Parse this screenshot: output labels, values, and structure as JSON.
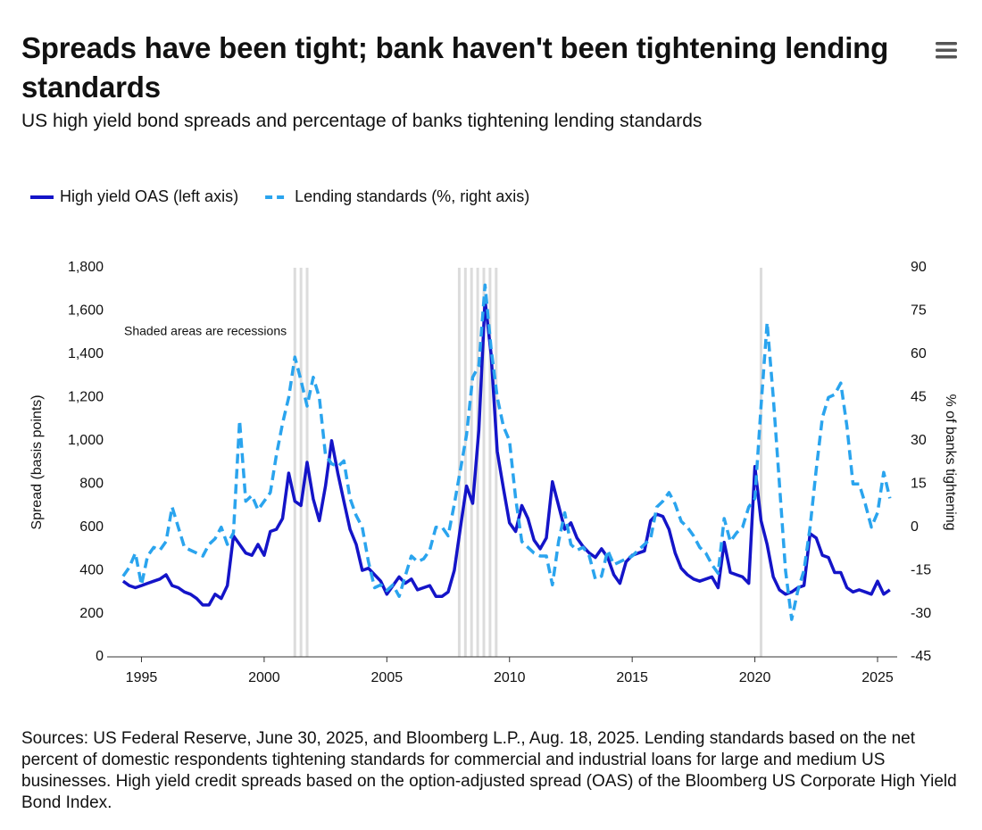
{
  "chart_data": {
    "type": "line",
    "title": "Spreads have been tight; bank haven't been tightening lending standards",
    "subtitle": "US high yield bond spreads and percentage of banks tightening lending standards",
    "ylabel": "Spread (basis points)",
    "y2label": "% of banks tightening",
    "annotation": "Shaded areas are recessions",
    "note": "Sources: US Federal Reserve, June 30, 2025, and Bloomberg L.P., Aug. 18, 2025. Lending standards based on the net percent of domestic respondents tightening standards for commercial and industrial loans for large and medium US businesses. High yield credit spreads based on the option-adjusted spread (OAS) of the Bloomberg US Corporate High Yield Bond Index.",
    "recessions": [
      [
        2001.25,
        2001.9
      ],
      [
        2007.95,
        2009.5
      ],
      [
        2020.25,
        2020.25
      ]
    ],
    "recession_color": "#dcdcdc",
    "xlim": [
      1993.6,
      2025.8
    ],
    "xticks": [
      1995,
      2000,
      2005,
      2010,
      2015,
      2020,
      2025
    ],
    "ylim": [
      0,
      1800
    ],
    "yticks": [
      0,
      200,
      400,
      600,
      800,
      {
        "value": 1000,
        "label": "1,000"
      },
      {
        "value": 1200,
        "label": "1,200"
      },
      {
        "value": 1400,
        "label": "1,400"
      },
      {
        "value": 1600,
        "label": "1,600"
      },
      {
        "value": 1800,
        "label": "1,800"
      }
    ],
    "y2lim": [
      -45,
      90
    ],
    "y2ticks": [
      -45,
      -30,
      -15,
      0,
      15,
      30,
      45,
      60,
      75,
      90
    ],
    "x": [
      1994.25,
      1994.5,
      1994.75,
      1995,
      1995.25,
      1995.5,
      1995.75,
      1996,
      1996.25,
      1996.5,
      1996.75,
      1997,
      1997.25,
      1997.5,
      1997.75,
      1998,
      1998.25,
      1998.5,
      1998.75,
      1999,
      1999.25,
      1999.5,
      1999.75,
      2000,
      2000.25,
      2000.5,
      2000.75,
      2001,
      2001.25,
      2001.5,
      2001.75,
      2002,
      2002.25,
      2002.5,
      2002.75,
      2003,
      2003.25,
      2003.5,
      2003.75,
      2004,
      2004.25,
      2004.5,
      2004.75,
      2005,
      2005.25,
      2005.5,
      2005.75,
      2006,
      2006.25,
      2006.5,
      2006.75,
      2007,
      2007.25,
      2007.5,
      2007.75,
      2008,
      2008.25,
      2008.5,
      2008.75,
      2009,
      2009.25,
      2009.5,
      2009.75,
      2010,
      2010.25,
      2010.5,
      2010.75,
      2011,
      2011.25,
      2011.5,
      2011.75,
      2012,
      2012.25,
      2012.5,
      2012.75,
      2013,
      2013.25,
      2013.5,
      2013.75,
      2014,
      2014.25,
      2014.5,
      2014.75,
      2015,
      2015.25,
      2015.5,
      2015.75,
      2016,
      2016.25,
      2016.5,
      2016.75,
      2017,
      2017.25,
      2017.5,
      2017.75,
      2018,
      2018.25,
      2018.5,
      2018.75,
      2019,
      2019.25,
      2019.5,
      2019.75,
      2020,
      2020.25,
      2020.5,
      2020.75,
      2021,
      2021.25,
      2021.5,
      2021.75,
      2022,
      2022.25,
      2022.5,
      2022.75,
      2023,
      2023.25,
      2023.5,
      2023.75,
      2024,
      2024.25,
      2024.5,
      2024.75,
      2025,
      2025.25,
      2025.5
    ],
    "series": [
      {
        "name": "High yield OAS (left axis)",
        "color": "#1414c8",
        "dash": false,
        "values": [
          350,
          330,
          320,
          330,
          340,
          350,
          360,
          380,
          330,
          320,
          300,
          290,
          270,
          240,
          240,
          290,
          270,
          330,
          560,
          520,
          480,
          470,
          520,
          470,
          580,
          590,
          640,
          850,
          720,
          700,
          900,
          730,
          630,
          790,
          1000,
          850,
          720,
          590,
          520,
          400,
          410,
          380,
          350,
          290,
          330,
          370,
          340,
          360,
          310,
          320,
          330,
          280,
          280,
          300,
          400,
          600,
          790,
          710,
          1050,
          1650,
          1400,
          950,
          780,
          620,
          580,
          700,
          640,
          540,
          500,
          550,
          810,
          700,
          590,
          620,
          550,
          510,
          480,
          460,
          500,
          460,
          380,
          340,
          440,
          470,
          480,
          490,
          630,
          660,
          650,
          590,
          480,
          410,
          380,
          360,
          350,
          360,
          370,
          320,
          530,
          390,
          380,
          370,
          340,
          880,
          630,
          520,
          370,
          310,
          290,
          300,
          320,
          330,
          570,
          550,
          470,
          460,
          390,
          390,
          320,
          300,
          310,
          300,
          290,
          350,
          290,
          310
        ]
      },
      {
        "name": "Lending standards (%, right axis)",
        "color": "#2aa4ee",
        "dash": true,
        "axis": "y2",
        "values": [
          -17,
          -14,
          -9,
          -20,
          -10,
          -7,
          -8,
          -5,
          7,
          0,
          -7,
          -8,
          -9,
          -10,
          -6,
          -4,
          0,
          -6,
          -2,
          37,
          9,
          11,
          6,
          9,
          12,
          25,
          36,
          45,
          59,
          51,
          42,
          52,
          45,
          25,
          22,
          21,
          23,
          10,
          4,
          0,
          -12,
          -21,
          -20,
          -22,
          -20,
          -24,
          -17,
          -10,
          -12,
          -11,
          -8,
          0,
          0,
          -3,
          8,
          20,
          32,
          52,
          56,
          84,
          62,
          45,
          35,
          30,
          10,
          -5,
          -7,
          -9,
          -10,
          -10,
          -20,
          -5,
          5,
          -6,
          -8,
          -7,
          -10,
          -18,
          -17,
          -8,
          -13,
          -12,
          -11,
          -10,
          -8,
          -6,
          -4,
          7,
          9,
          12,
          8,
          2,
          0,
          -3,
          -7,
          -9,
          -13,
          -16,
          3,
          -5,
          -2,
          0,
          7,
          10,
          42,
          71,
          45,
          15,
          -15,
          -32,
          -22,
          -15,
          0,
          20,
          38,
          45,
          46,
          50,
          35,
          15,
          15,
          8,
          0,
          5,
          19,
          10
        ]
      }
    ]
  }
}
